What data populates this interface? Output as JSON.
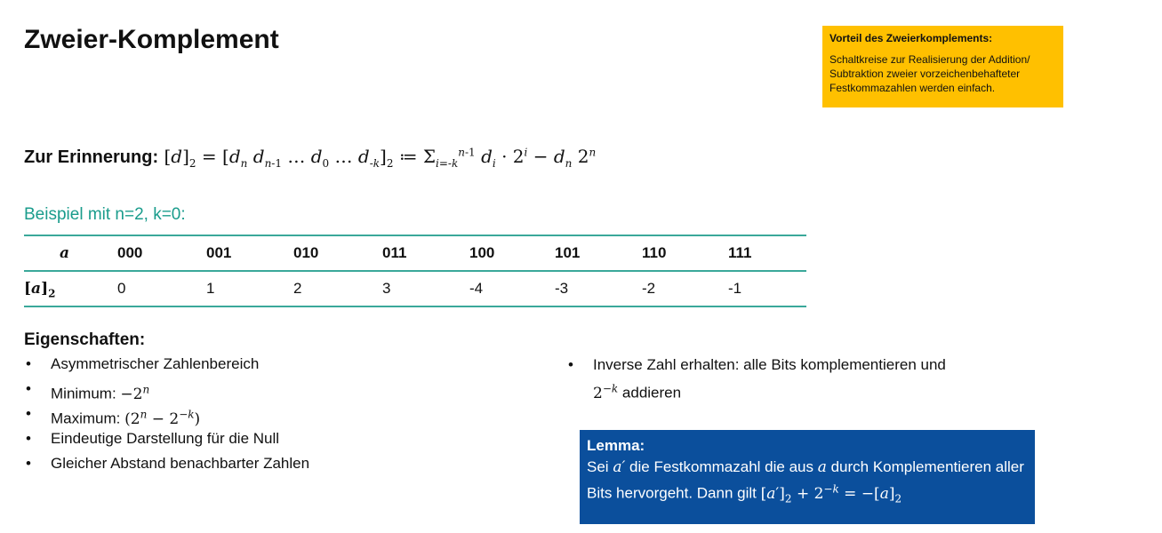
{
  "title": "Zweier-Komplement",
  "note": {
    "heading": "Vorteil des Zweierkomplements:",
    "text": "Schaltkreise zur Realisierung der Addition/ Subtraktion zweier vorzeichenbehafteter Festkommazahlen werden einfach.",
    "color": "#FFC000"
  },
  "formula": {
    "label": "Zur Erinnerung",
    "expression": "[d]_2 = [d_n d_{n-1} … d_0 … d_{-k}]_2 ≔ Σ_{i=-k}^{n-1} d_i · 2^i − d_n 2^n"
  },
  "example": {
    "label": "Beispiel mit n=2, k=0:",
    "color": "#1A9C8C"
  },
  "table": {
    "header_label": "a",
    "value_label": "[a]2",
    "bits": [
      "000",
      "001",
      "010",
      "011",
      "100",
      "101",
      "110",
      "111"
    ],
    "values": [
      "0",
      "1",
      "2",
      "3",
      "-4",
      "-3",
      "-2",
      "-1"
    ]
  },
  "properties": {
    "heading": "Eigenschaften:",
    "items": [
      "Asymmetrischer Zahlenbereich",
      "Minimum: −2^n",
      "Maximum: (2^n − 2^{−k})",
      "Eindeutige Darstellung für die Null",
      "Gleicher Abstand benachbarter Zahlen"
    ],
    "item0": "Asymmetrischer Zahlenbereich",
    "min_label": "Minimum:",
    "max_label": "Maximum:",
    "item3": "Eindeutige Darstellung für die Null",
    "item4": "Gleicher Abstand benachbarter Zahlen"
  },
  "inverse": {
    "text1": "Inverse Zahl erhalten: alle Bits komplementieren und",
    "text2": "addieren"
  },
  "lemma": {
    "heading": "Lemma:",
    "t1": "Sei",
    "t2": "die Festkommazahl die aus",
    "t3": "durch Komplementieren aller Bits hervorgeht. Dann gilt",
    "color": "#0B4F9C"
  }
}
